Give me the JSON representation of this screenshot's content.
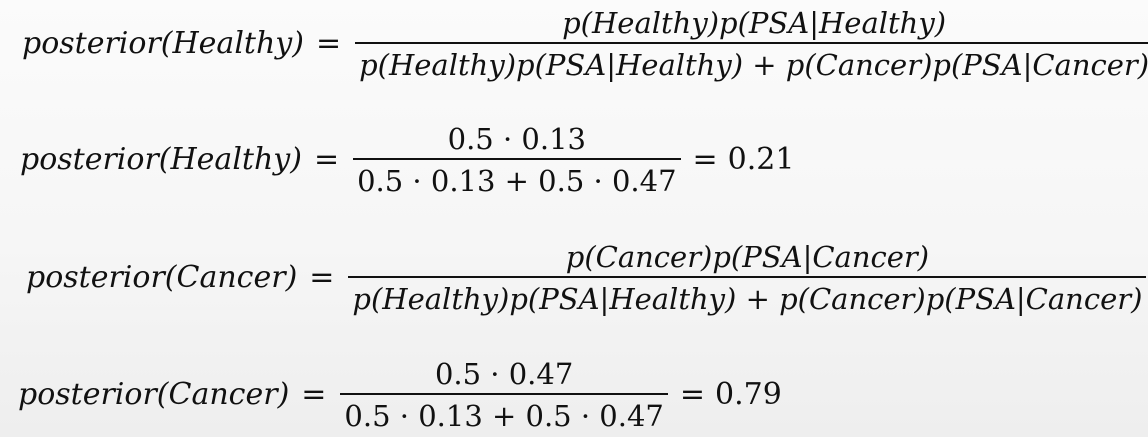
{
  "equations": [
    {
      "lhs": "posterior(Healthy)",
      "equals": "=",
      "numerator": "p(Healthy)p(PSA|Healthy)",
      "denominator": "p(Healthy)p(PSA|Healthy) + p(Cancer)p(PSA|Cancer)"
    },
    {
      "lhs": "posterior(Healthy)",
      "equals": "=",
      "numerator": "0.5 · 0.13",
      "denominator": "0.5 · 0.13 + 0.5 · 0.47",
      "result_equals": "=",
      "result": "0.21"
    },
    {
      "lhs": "posterior(Cancer)",
      "equals": "=",
      "numerator": "p(Cancer)p(PSA|Cancer)",
      "denominator": "p(Healthy)p(PSA|Healthy) + p(Cancer)p(PSA|Cancer)"
    },
    {
      "lhs": "posterior(Cancer)",
      "equals": "=",
      "numerator": "0.5 · 0.47",
      "denominator": "0.5 · 0.13 + 0.5 · 0.47",
      "result_equals": "=",
      "result": "0.79"
    }
  ]
}
